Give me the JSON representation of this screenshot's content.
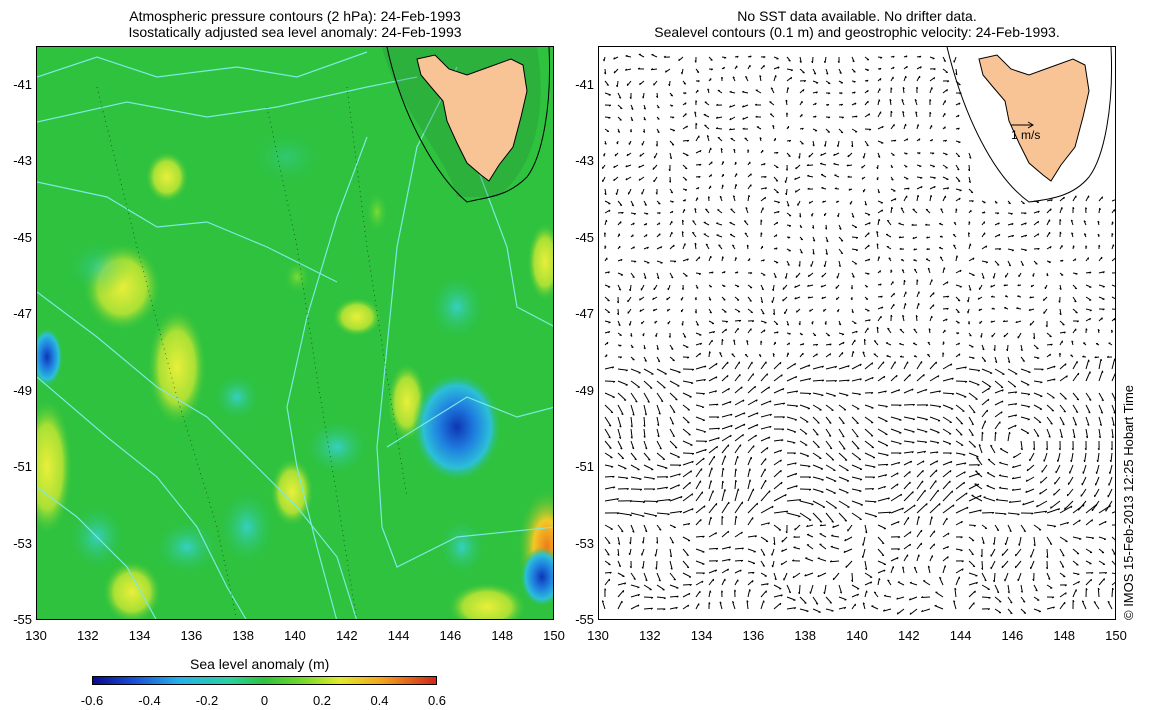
{
  "left_title": {
    "line1": "Atmospheric pressure contours (2 hPa): 24-Feb-1993",
    "line2": "Isostatically adjusted sea level anomaly: 24-Feb-1993"
  },
  "right_title": {
    "line1": "No SST data available.  No drifter data.",
    "line2": "Sealevel contours (0.1 m) and geostrophic velocity: 24-Feb-1993."
  },
  "y_ticks": [
    "-41",
    "-43",
    "-45",
    "-47",
    "-49",
    "-51",
    "-53",
    "-55"
  ],
  "x_ticks": [
    "130",
    "132",
    "134",
    "136",
    "138",
    "140",
    "142",
    "144",
    "146",
    "148",
    "150"
  ],
  "velocity_scale_label": "1 m/s",
  "colorbar": {
    "title": "Sea level anomaly (m)",
    "ticks": [
      "-0.6",
      "-0.4",
      "-0.2",
      "0",
      "0.2",
      "0.4",
      "0.6"
    ]
  },
  "credit": "© IMOS 15-Feb-2013 12:25 Hobart Time",
  "colors": {
    "ocean_base": "#2ec23e",
    "land": "#f8c496",
    "isobar": "#7fe8e0"
  }
}
